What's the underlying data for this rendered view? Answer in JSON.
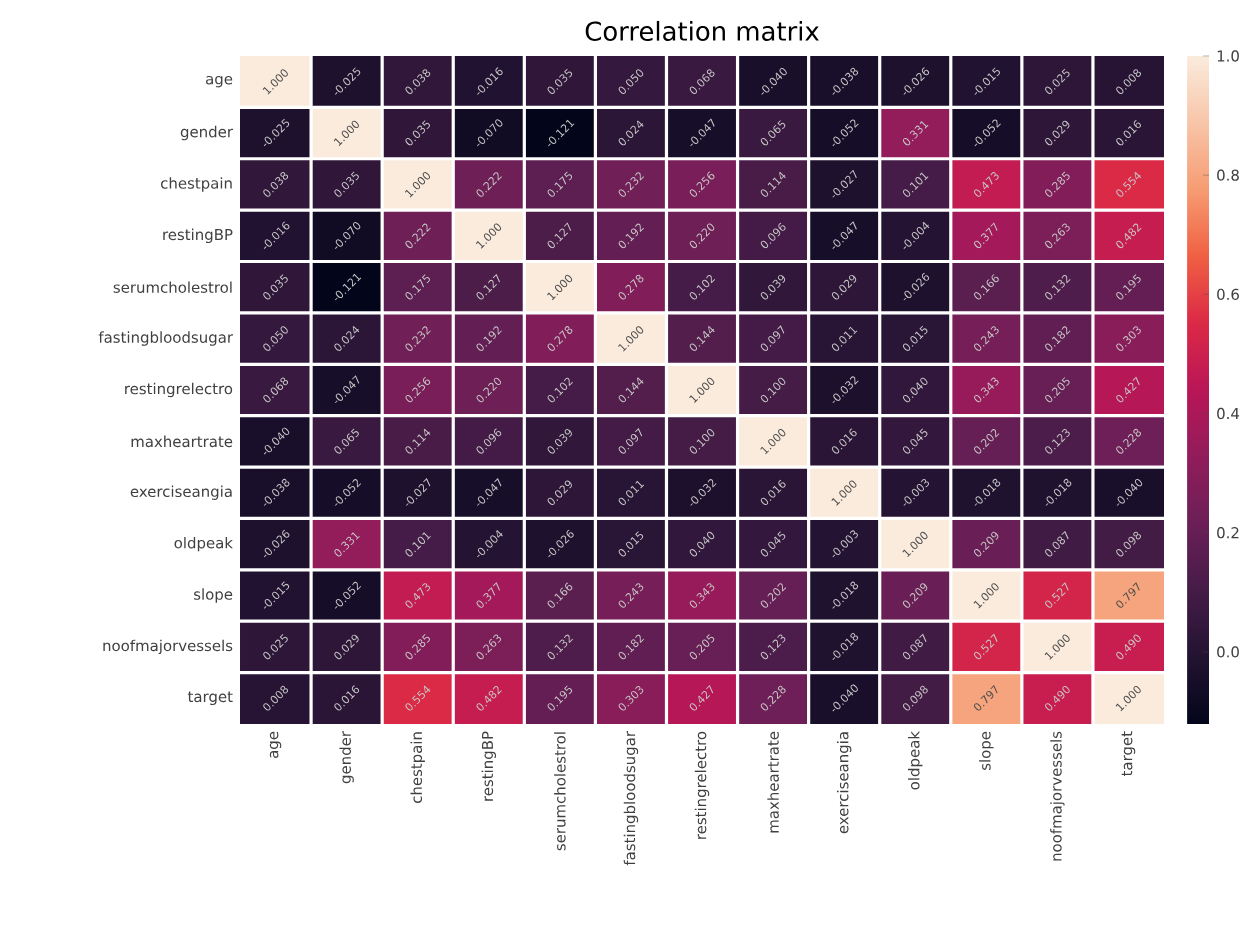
{
  "chart_data": {
    "type": "heatmap",
    "title": "Correlation matrix",
    "categories": [
      "age",
      "gender",
      "chestpain",
      "restingBP",
      "serumcholestrol",
      "fastingbloodsugar",
      "restingrelectro",
      "maxheartrate",
      "exerciseangia",
      "oldpeak",
      "slope",
      "noofmajorvessels",
      "target"
    ],
    "y_categories": [
      "age",
      "gender",
      "chestpain",
      "restingBP",
      "serumcholestrol",
      "fastingbloodsugar",
      "restingrelectro",
      "maxheartrate",
      "exerciseangia",
      "oldpeak",
      "slope",
      "noofmajorvessels",
      "target"
    ],
    "cells": [
      [
        1.0,
        -0.025,
        0.038,
        -0.016,
        0.035,
        0.05,
        0.068,
        -0.04,
        -0.038,
        -0.026,
        -0.015,
        0.025,
        0.008
      ],
      [
        -0.025,
        1.0,
        0.035,
        -0.07,
        -0.121,
        0.024,
        -0.047,
        0.065,
        -0.052,
        0.331,
        -0.052,
        0.029,
        0.016
      ],
      [
        0.038,
        0.035,
        1.0,
        0.222,
        0.175,
        0.232,
        0.256,
        0.114,
        -0.027,
        0.101,
        0.473,
        0.285,
        0.554
      ],
      [
        -0.016,
        -0.07,
        0.222,
        1.0,
        0.127,
        0.192,
        0.22,
        0.096,
        -0.047,
        -0.004,
        0.377,
        0.263,
        0.482
      ],
      [
        0.035,
        -0.121,
        0.175,
        0.127,
        1.0,
        0.278,
        0.102,
        0.039,
        0.029,
        -0.026,
        0.166,
        0.132,
        0.195
      ],
      [
        0.05,
        0.024,
        0.232,
        0.192,
        0.278,
        1.0,
        0.144,
        0.097,
        0.011,
        0.015,
        0.243,
        0.182,
        0.303
      ],
      [
        0.068,
        -0.047,
        0.256,
        0.22,
        0.102,
        0.144,
        1.0,
        0.1,
        -0.032,
        0.04,
        0.343,
        0.205,
        0.427
      ],
      [
        -0.04,
        0.065,
        0.114,
        0.096,
        0.039,
        0.097,
        0.1,
        1.0,
        0.016,
        0.045,
        0.202,
        0.123,
        0.228
      ],
      [
        -0.038,
        -0.052,
        -0.027,
        -0.047,
        0.029,
        0.011,
        -0.032,
        0.016,
        1.0,
        -0.003,
        -0.018,
        -0.018,
        -0.04
      ],
      [
        -0.026,
        0.331,
        0.101,
        -0.004,
        -0.026,
        0.015,
        0.04,
        0.045,
        -0.003,
        1.0,
        0.209,
        0.087,
        0.098
      ],
      [
        -0.015,
        -0.052,
        0.473,
        0.377,
        0.166,
        0.243,
        0.343,
        0.202,
        -0.018,
        0.209,
        1.0,
        0.527,
        0.797
      ],
      [
        0.025,
        0.029,
        0.285,
        0.263,
        0.132,
        0.182,
        0.205,
        0.123,
        -0.018,
        0.087,
        0.527,
        1.0,
        0.49
      ],
      [
        0.008,
        0.016,
        0.554,
        0.482,
        0.195,
        0.303,
        0.427,
        0.228,
        -0.04,
        0.098,
        0.797,
        0.49,
        1.0
      ]
    ],
    "cell_labels": [
      [
        "1.000",
        "-0.025",
        "0.038",
        "-0.016",
        "0.035",
        "0.050",
        "0.068",
        "-0.040",
        "-0.038",
        "-0.026",
        "-0.015",
        "0.025",
        "0.008"
      ],
      [
        "-0.025",
        "1.000",
        "0.035",
        "-0.070",
        "-0.121",
        "0.024",
        "-0.047",
        "0.065",
        "-0.052",
        "0.331",
        "-0.052",
        "0.029",
        "0.016"
      ],
      [
        "0.038",
        "0.035",
        "1.000",
        "0.222",
        "0.175",
        "0.232",
        "0.256",
        "0.114",
        "-0.027",
        "0.101",
        "0.473",
        "0.285",
        "0.554"
      ],
      [
        "-0.016",
        "-0.070",
        "0.222",
        "1.000",
        "0.127",
        "0.192",
        "0.220",
        "0.096",
        "-0.047",
        "-0.004",
        "0.377",
        "0.263",
        "0.482"
      ],
      [
        "0.035",
        "-0.121",
        "0.175",
        "0.127",
        "1.000",
        "0.278",
        "0.102",
        "0.039",
        "0.029",
        "-0.026",
        "0.166",
        "0.132",
        "0.195"
      ],
      [
        "0.050",
        "0.024",
        "0.232",
        "0.192",
        "0.278",
        "1.000",
        "0.144",
        "0.097",
        "0.011",
        "0.015",
        "0.243",
        "0.182",
        "0.303"
      ],
      [
        "0.068",
        "-0.047",
        "0.256",
        "0.220",
        "0.102",
        "0.144",
        "1.000",
        "0.100",
        "-0.032",
        "0.040",
        "0.343",
        "0.205",
        "0.427"
      ],
      [
        "-0.040",
        "0.065",
        "0.114",
        "0.096",
        "0.039",
        "0.097",
        "0.100",
        "1.000",
        "0.016",
        "0.045",
        "0.202",
        "0.123",
        "0.228"
      ],
      [
        "-0.038",
        "-0.052",
        "-0.027",
        "-0.047",
        "0.029",
        "0.011",
        "-0.032",
        "0.016",
        "1.000",
        "-0.003",
        "-0.018",
        "-0.018",
        "-0.040"
      ],
      [
        "-0.026",
        "0.331",
        "0.101",
        "-0.004",
        "-0.026",
        "0.015",
        "0.040",
        "0.045",
        "-0.003",
        "1.000",
        "0.209",
        "0.087",
        "0.098"
      ],
      [
        "-0.015",
        "-0.052",
        "0.473",
        "0.377",
        "0.166",
        "0.243",
        "0.343",
        "0.202",
        "-0.018",
        "0.209",
        "1.000",
        "0.527",
        "0.797"
      ],
      [
        "0.025",
        "0.029",
        "0.285",
        "0.263",
        "0.132",
        "0.182",
        "0.205",
        "0.123",
        "-0.018",
        "0.087",
        "0.527",
        "1.000",
        "0.490"
      ],
      [
        "0.008",
        "0.016",
        "0.554",
        "0.482",
        "0.195",
        "0.303",
        "0.427",
        "0.228",
        "-0.040",
        "0.098",
        "0.797",
        "0.490",
        "1.000"
      ]
    ],
    "clim": [
      -0.121,
      1.0
    ],
    "cticks": [
      {
        "value": 0.0,
        "label": "0.0"
      },
      {
        "value": 0.2,
        "label": "0.2"
      },
      {
        "value": 0.4,
        "label": "0.4"
      },
      {
        "value": 0.6,
        "label": "0.6"
      },
      {
        "value": 0.8,
        "label": "0.8"
      },
      {
        "value": 1.0,
        "label": "1.0"
      }
    ]
  }
}
